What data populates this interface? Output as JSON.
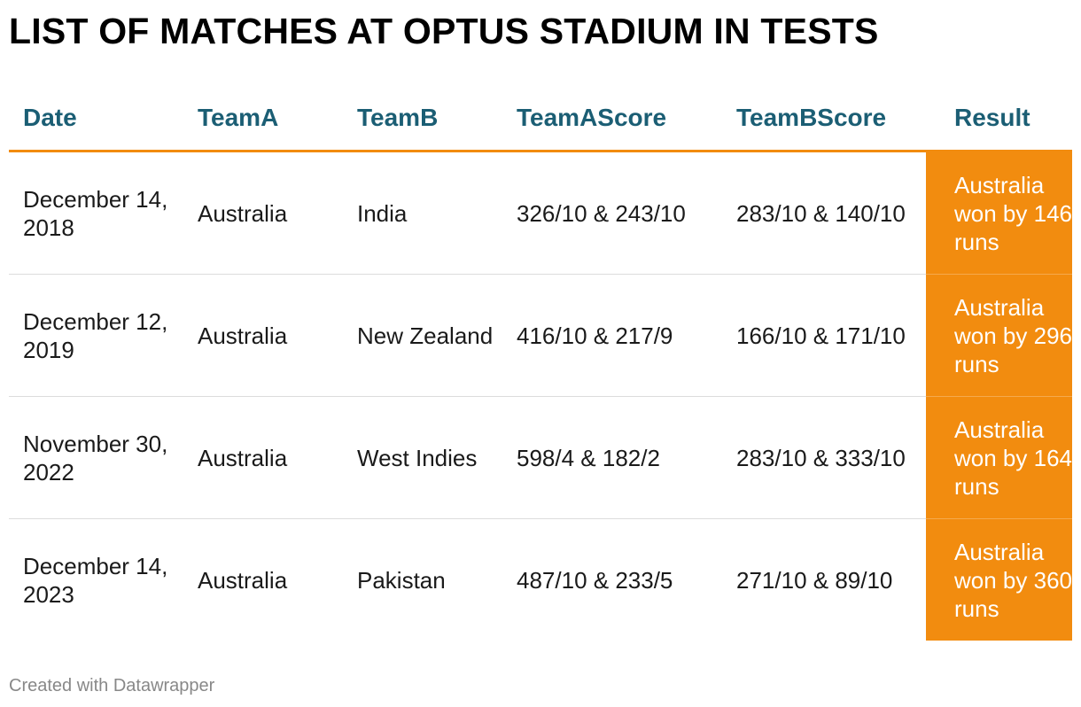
{
  "title": "LIST OF MATCHES AT OPTUS STADIUM IN TESTS",
  "footer": "Created with Datawrapper",
  "colors": {
    "header_text": "#1b5e74",
    "accent": "#f28c0f",
    "result_text": "#ffffff"
  },
  "chart_data": {
    "type": "table",
    "columns": [
      "Date",
      "TeamA",
      "TeamB",
      "TeamAScore",
      "TeamBScore",
      "Result"
    ],
    "rows": [
      {
        "date": "December 14, 2018",
        "team_a": "Australia",
        "team_b": "India",
        "team_a_score": "326/10 & 243/10",
        "team_b_score": "283/10 & 140/10",
        "result": "Australia won by 146 runs"
      },
      {
        "date": "December 12, 2019",
        "team_a": "Australia",
        "team_b": "New Zealand",
        "team_a_score": "416/10 & 217/9",
        "team_b_score": "166/10 & 171/10",
        "result": "Australia won by 296 runs"
      },
      {
        "date": "November 30, 2022",
        "team_a": "Australia",
        "team_b": "West Indies",
        "team_a_score": "598/4 & 182/2",
        "team_b_score": "283/10 & 333/10",
        "result": "Australia won by 164 runs"
      },
      {
        "date": "December 14, 2023",
        "team_a": "Australia",
        "team_b": "Pakistan",
        "team_a_score": "487/10 & 233/5",
        "team_b_score": "271/10 & 89/10",
        "result": "Australia won by 360 runs"
      }
    ]
  }
}
